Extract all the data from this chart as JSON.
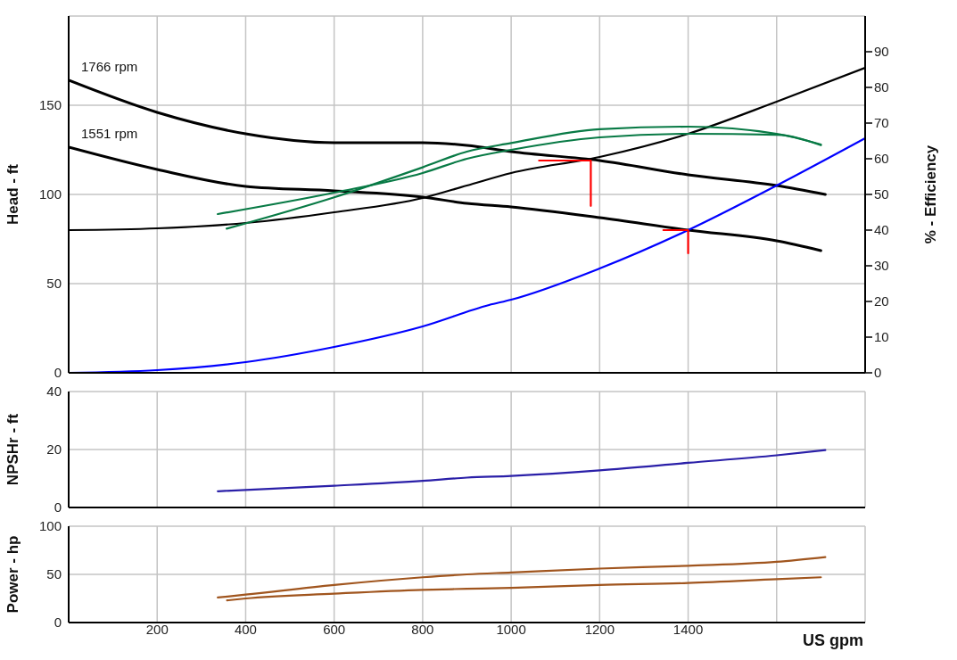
{
  "chart_data": [
    {
      "type": "line",
      "ylabel": "Head - ft",
      "y2label": "% - Efficiency",
      "xlim": [
        0,
        1800
      ],
      "xticks": [
        200,
        400,
        600,
        800,
        1000,
        1200,
        1400,
        1600
      ],
      "ylim": [
        0,
        200
      ],
      "yticks": [
        0,
        50,
        100,
        150
      ],
      "y2lim": [
        0,
        100
      ],
      "y2ticks": [
        0,
        10,
        20,
        30,
        40,
        50,
        60,
        70,
        80,
        90
      ],
      "grid": true,
      "tick_labels": "y",
      "series": [
        {
          "name": "1766 rpm",
          "color": "#000000",
          "x": [
            0,
            200,
            400,
            600,
            800,
            900,
            1000,
            1200,
            1400,
            1600,
            1710
          ],
          "values": [
            164,
            146,
            134,
            129,
            129,
            127.5,
            124,
            119,
            111,
            105,
            100
          ]
        },
        {
          "name": "1551 rpm",
          "color": "#000000",
          "x": [
            0,
            200,
            400,
            600,
            800,
            900,
            1000,
            1200,
            1400,
            1600,
            1700
          ],
          "values": [
            126.5,
            114,
            104.5,
            102,
            98.5,
            95,
            93,
            87,
            80,
            74,
            68.5
          ]
        },
        {
          "color": "#000000",
          "x": [
            0,
            200,
            400,
            600,
            800,
            900,
            1000,
            1200,
            1400,
            1600,
            1800
          ],
          "values": [
            80,
            81,
            84,
            90,
            98,
            105,
            112,
            121,
            134,
            152,
            171
          ]
        },
        {
          "color": "#0000ff",
          "x": [
            0,
            200,
            400,
            600,
            800,
            950,
            1000,
            1200,
            1400,
            1600,
            1800
          ],
          "values": [
            0,
            1.5,
            6,
            14.5,
            26,
            38,
            41,
            58.5,
            80,
            105,
            131.5
          ]
        },
        {
          "color": "#087a45",
          "axis": "y2",
          "x": [
            337,
            600,
            800,
            900,
            1000,
            1200,
            1400,
            1600,
            1700
          ],
          "values": [
            44.5,
            50.5,
            56,
            60,
            62.5,
            66,
            67,
            66.7,
            63.8
          ]
        },
        {
          "color": "#087a45",
          "axis": "y2",
          "x": [
            357,
            600,
            800,
            900,
            1000,
            1200,
            1400,
            1600,
            1700
          ],
          "values": [
            40.4,
            49.2,
            57.6,
            62,
            64.4,
            68.3,
            69,
            67,
            64
          ]
        },
        {
          "color": "#ff0000",
          "x": [
            1063,
            1180,
            1180
          ],
          "values": [
            119,
            119,
            93.6
          ]
        },
        {
          "color": "#ff0000",
          "x": [
            1344,
            1400,
            1400
          ],
          "values": [
            80,
            80,
            67
          ]
        }
      ]
    },
    {
      "type": "line",
      "ylabel": "NPSHr - ft",
      "xlim": [
        0,
        1800
      ],
      "xticks": [
        200,
        400,
        600,
        800,
        1000,
        1200,
        1400,
        1600
      ],
      "ylim": [
        0,
        40
      ],
      "yticks": [
        0,
        20,
        40
      ],
      "grid": true,
      "tick_labels": "y",
      "series": [
        {
          "color": "#2a1fa8",
          "x": [
            337,
            600,
            800,
            900,
            1000,
            1200,
            1400,
            1600,
            1710
          ],
          "values": [
            5.6,
            7.5,
            9.2,
            10.3,
            10.9,
            12.8,
            15.4,
            18,
            19.8
          ]
        }
      ]
    },
    {
      "type": "line",
      "ylabel": "Power - hp",
      "xlabel": "US gpm",
      "xlim": [
        0,
        1800
      ],
      "xticks": [
        200,
        400,
        600,
        800,
        1000,
        1200,
        1400,
        {
          "value": 1600,
          "label": null
        }
      ],
      "ylim": [
        0,
        100
      ],
      "yticks": [
        0,
        50,
        100
      ],
      "grid": true,
      "series": [
        {
          "color": "#a0551e",
          "x": [
            337,
            400,
            600,
            800,
            900,
            1000,
            1200,
            1400,
            1600,
            1710
          ],
          "values": [
            26,
            29,
            39,
            47,
            50,
            52,
            56,
            59,
            63,
            68
          ]
        },
        {
          "color": "#a0551e",
          "x": [
            358,
            400,
            600,
            800,
            900,
            1000,
            1200,
            1400,
            1600,
            1700
          ],
          "values": [
            23,
            25,
            30,
            34,
            35,
            36,
            39,
            41,
            45,
            47
          ]
        }
      ]
    }
  ]
}
